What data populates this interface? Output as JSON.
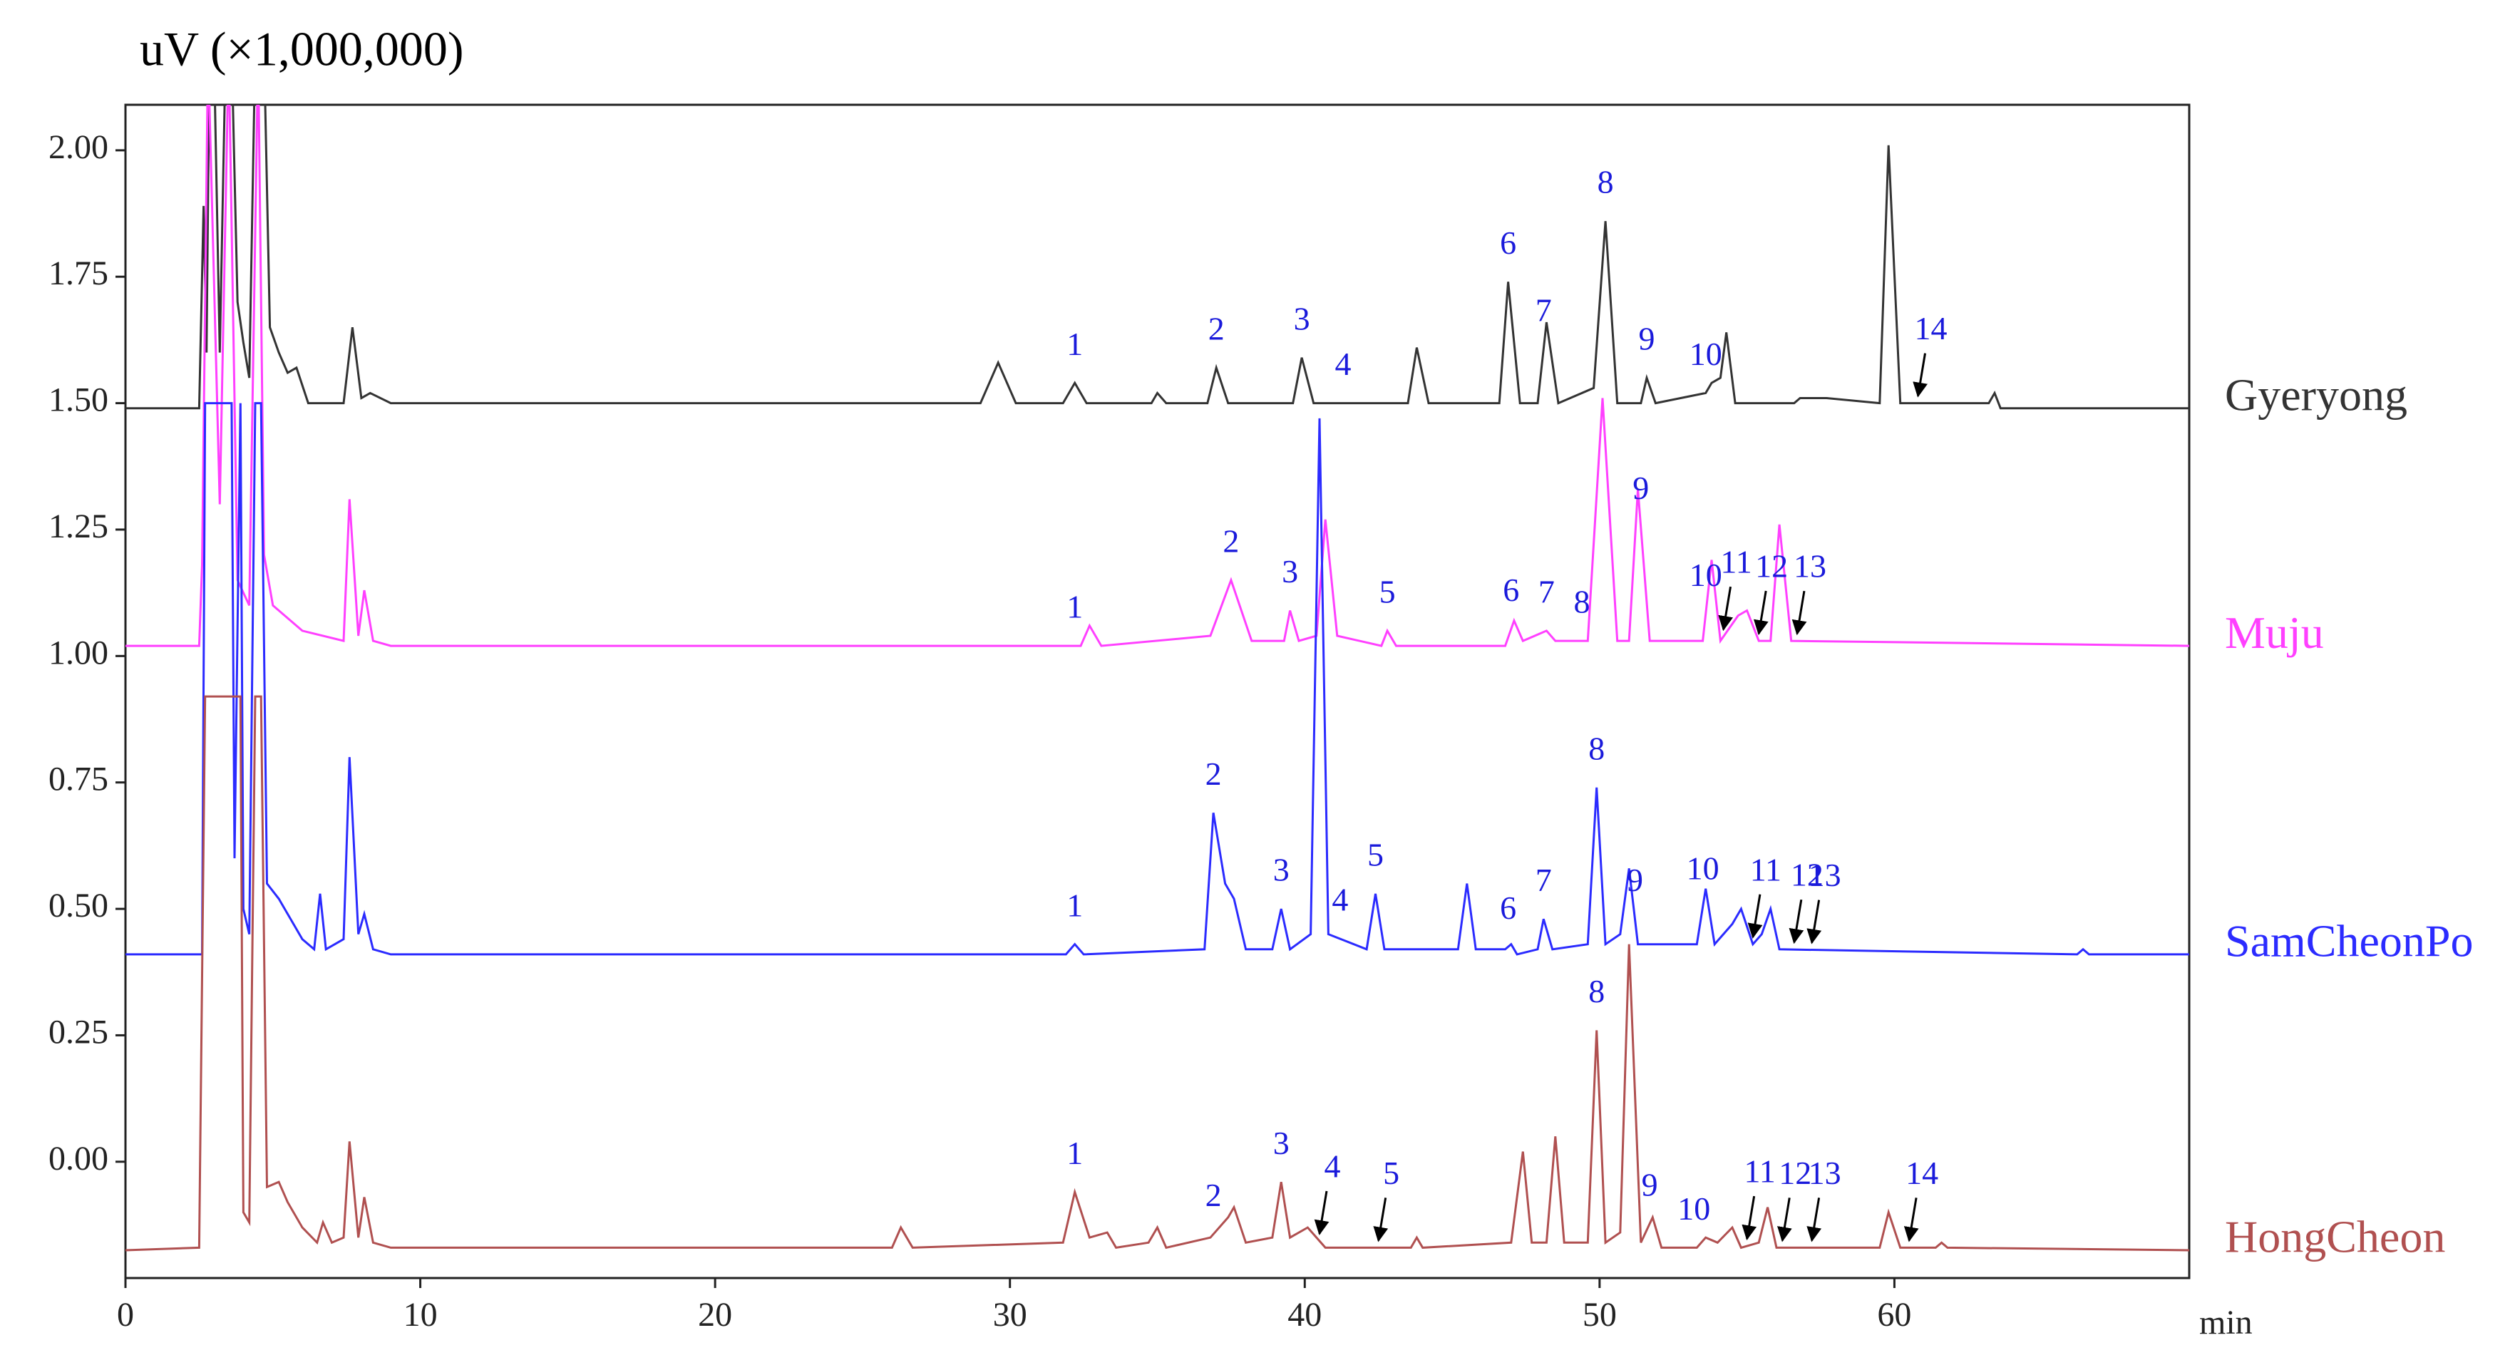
{
  "chart_data": {
    "type": "line",
    "ylabel": "uV (×1,000,000)",
    "xlabel": "min",
    "xlim": [
      0,
      70
    ],
    "xticks": [
      0,
      10,
      20,
      30,
      40,
      50,
      60
    ],
    "ylim": [
      -0.23,
      2.09
    ],
    "yticks": [
      {
        "value": 0,
        "label": "0.00"
      },
      {
        "value": 0.25,
        "label": "0.25"
      },
      {
        "value": 0.5,
        "label": "0.50"
      },
      {
        "value": 0.75,
        "label": "0.75"
      },
      {
        "value": 1,
        "label": "1.00"
      },
      {
        "value": 1.25,
        "label": "1.25"
      },
      {
        "value": 1.5,
        "label": "1.50"
      },
      {
        "value": 1.75,
        "label": "1.75"
      },
      {
        "value": 2,
        "label": "2.00"
      }
    ],
    "peak_label_color": "#1a1adb",
    "series": [
      {
        "name": "Gyeryong",
        "color": "#333333",
        "x": [
          0,
          2.5,
          2.65,
          2.75,
          2.85,
          3.0,
          3.2,
          3.4,
          3.6,
          3.8,
          4.0,
          4.2,
          4.4,
          4.7,
          4.9,
          5.2,
          5.5,
          5.8,
          6.2,
          7.4,
          7.7,
          8.0,
          8.3,
          9,
          29,
          29.6,
          30.2,
          31.8,
          32.2,
          32.6,
          34.8,
          35,
          35.3,
          36.7,
          37.0,
          37.4,
          39.6,
          39.9,
          40.3,
          43.5,
          43.8,
          44.2,
          46.6,
          46.9,
          47.3,
          47.9,
          48.2,
          48.6,
          49.8,
          50.2,
          50.6,
          51.4,
          51.6,
          51.9,
          53.6,
          53.8,
          54.1,
          54.3,
          54.6,
          56.6,
          56.8,
          57.7,
          59.5,
          59.8,
          60.2,
          63.2,
          63.4,
          63.6,
          70
        ],
        "values": [
          1.49,
          1.49,
          1.89,
          1.6,
          2.2,
          2.2,
          1.6,
          2.2,
          2.2,
          1.7,
          1.62,
          1.55,
          2.2,
          2.2,
          1.65,
          1.6,
          1.56,
          1.57,
          1.5,
          1.5,
          1.65,
          1.51,
          1.52,
          1.5,
          1.5,
          1.58,
          1.5,
          1.5,
          1.54,
          1.5,
          1.5,
          1.52,
          1.5,
          1.5,
          1.57,
          1.5,
          1.5,
          1.59,
          1.5,
          1.5,
          1.61,
          1.5,
          1.5,
          1.74,
          1.5,
          1.5,
          1.66,
          1.5,
          1.53,
          1.86,
          1.5,
          1.5,
          1.55,
          1.5,
          1.52,
          1.54,
          1.55,
          1.64,
          1.5,
          1.5,
          1.51,
          1.51,
          1.5,
          2.01,
          1.5,
          1.5,
          1.52,
          1.49,
          1.49
        ],
        "peak_labels": [
          {
            "label": "1",
            "x": 32.2
          },
          {
            "label": "2",
            "x": 37.0
          },
          {
            "label": "3",
            "x": 39.9
          },
          {
            "label": "4",
            "x": 41.3
          },
          {
            "label": "6",
            "x": 46.9
          },
          {
            "label": "7",
            "x": 48.1
          },
          {
            "label": "8",
            "x": 50.2
          },
          {
            "label": "9",
            "x": 51.6
          },
          {
            "label": "10",
            "x": 53.6
          },
          {
            "label": "14",
            "x": 60.8,
            "arrow": true
          }
        ]
      },
      {
        "name": "Muju",
        "color": "#ff40ff",
        "x": [
          0,
          2.5,
          2.6,
          2.8,
          3.2,
          3.5,
          3.8,
          4.2,
          4.5,
          4.7,
          5.0,
          6,
          7.4,
          7.6,
          7.9,
          8.1,
          8.4,
          9,
          32.4,
          32.7,
          33.1,
          36.8,
          37.5,
          38.2,
          39.3,
          39.5,
          39.8,
          40.4,
          40.7,
          41.1,
          42.6,
          42.8,
          43.1,
          46.8,
          47.1,
          47.4,
          48.2,
          48.5,
          49.6,
          50.1,
          50.6,
          51.0,
          51.3,
          51.7,
          53.5,
          53.8,
          54.1,
          54.7,
          55.0,
          55.4,
          55.8,
          56.1,
          56.5,
          70
        ],
        "values": [
          1.02,
          1.02,
          1.18,
          2.2,
          1.3,
          2.2,
          1.15,
          1.1,
          2.2,
          1.2,
          1.1,
          1.05,
          1.03,
          1.31,
          1.04,
          1.13,
          1.03,
          1.02,
          1.02,
          1.06,
          1.02,
          1.04,
          1.15,
          1.03,
          1.03,
          1.09,
          1.03,
          1.04,
          1.27,
          1.04,
          1.02,
          1.05,
          1.02,
          1.02,
          1.07,
          1.03,
          1.05,
          1.03,
          1.03,
          1.51,
          1.03,
          1.03,
          1.33,
          1.03,
          1.03,
          1.19,
          1.03,
          1.08,
          1.09,
          1.03,
          1.03,
          1.26,
          1.03,
          1.02
        ],
        "peak_labels": [
          {
            "label": "1",
            "x": 32.2
          },
          {
            "label": "2",
            "x": 37.5
          },
          {
            "label": "3",
            "x": 39.5
          },
          {
            "label": "5",
            "x": 42.8
          },
          {
            "label": "6",
            "x": 47.0
          },
          {
            "label": "7",
            "x": 48.2
          },
          {
            "label": "8",
            "x": 49.4
          },
          {
            "label": "9",
            "x": 51.4
          },
          {
            "label": "10",
            "x": 53.6
          },
          {
            "label": "11",
            "x": 54.2,
            "arrow": true
          },
          {
            "label": "12",
            "x": 55.4,
            "arrow": true
          },
          {
            "label": "13",
            "x": 56.7,
            "arrow": true
          }
        ]
      },
      {
        "name": "SamCheonPo",
        "color": "#2b2bff",
        "x": [
          0,
          2.6,
          2.7,
          3.6,
          3.7,
          3.9,
          4.0,
          4.2,
          4.4,
          4.6,
          4.8,
          5.2,
          5.6,
          6,
          6.4,
          6.6,
          6.8,
          7.4,
          7.6,
          7.9,
          8.1,
          8.4,
          9,
          31.9,
          32.2,
          32.5,
          36.6,
          36.9,
          37.3,
          37.6,
          38,
          38.9,
          39.2,
          39.5,
          40.2,
          40.5,
          40.8,
          42.1,
          42.4,
          42.7,
          45.2,
          45.5,
          45.8,
          46.8,
          47.0,
          47.2,
          47.9,
          48.1,
          48.4,
          49.6,
          49.9,
          50.2,
          50.7,
          51.0,
          51.3,
          53.3,
          53.6,
          53.9,
          54.5,
          54.8,
          55.2,
          55.5,
          55.8,
          56.1,
          66.2,
          66.4,
          66.6,
          70
        ],
        "values": [
          0.41,
          0.41,
          1.5,
          1.5,
          0.6,
          1.5,
          0.5,
          0.45,
          1.5,
          1.5,
          0.55,
          0.52,
          0.48,
          0.44,
          0.42,
          0.53,
          0.42,
          0.44,
          0.8,
          0.45,
          0.49,
          0.42,
          0.41,
          0.41,
          0.43,
          0.41,
          0.42,
          0.69,
          0.55,
          0.52,
          0.42,
          0.42,
          0.5,
          0.42,
          0.45,
          1.47,
          0.45,
          0.42,
          0.53,
          0.42,
          0.42,
          0.55,
          0.42,
          0.42,
          0.43,
          0.41,
          0.42,
          0.48,
          0.42,
          0.43,
          0.74,
          0.43,
          0.45,
          0.58,
          0.43,
          0.43,
          0.54,
          0.43,
          0.47,
          0.5,
          0.43,
          0.45,
          0.5,
          0.42,
          0.41,
          0.42,
          0.41,
          0.41
        ],
        "peak_labels": [
          {
            "label": "1",
            "x": 32.2
          },
          {
            "label": "2",
            "x": 36.9
          },
          {
            "label": "3",
            "x": 39.2
          },
          {
            "label": "4",
            "x": 41.2
          },
          {
            "label": "5",
            "x": 42.4
          },
          {
            "label": "6",
            "x": 46.9
          },
          {
            "label": "7",
            "x": 48.1
          },
          {
            "label": "8",
            "x": 49.9
          },
          {
            "label": "9",
            "x": 51.2
          },
          {
            "label": "10",
            "x": 53.5
          },
          {
            "label": "11",
            "x": 55.2,
            "arrow": true
          },
          {
            "label": "12",
            "x": 56.6,
            "arrow": true
          },
          {
            "label": "13",
            "x": 57.2,
            "arrow": true
          }
        ]
      },
      {
        "name": "HongCheon",
        "color": "#b05050",
        "x": [
          0,
          2.5,
          2.7,
          3.9,
          4.0,
          4.2,
          4.4,
          4.6,
          4.8,
          5.2,
          5.5,
          6.0,
          6.5,
          6.7,
          7.0,
          7.4,
          7.6,
          7.9,
          8.1,
          8.4,
          9,
          26,
          26.3,
          26.7,
          31.8,
          32.2,
          32.7,
          33.3,
          33.6,
          34.7,
          35,
          35.3,
          36.8,
          37.4,
          37.6,
          38,
          38.9,
          39.2,
          39.5,
          40.1,
          40.4,
          40.7,
          43.6,
          43.8,
          44,
          47.0,
          47.4,
          47.7,
          48.2,
          48.5,
          48.8,
          49.6,
          49.9,
          50.2,
          50.7,
          51.0,
          51.4,
          51.8,
          52.1,
          53.3,
          53.6,
          54,
          54.5,
          54.8,
          55.4,
          55.7,
          56,
          59.5,
          59.8,
          60.2,
          61.4,
          61.6,
          61.8,
          70
        ],
        "values": [
          -0.175,
          -0.17,
          0.92,
          0.92,
          -0.1,
          -0.12,
          0.92,
          0.92,
          -0.05,
          -0.04,
          -0.08,
          -0.13,
          -0.16,
          -0.12,
          -0.16,
          -0.15,
          0.04,
          -0.15,
          -0.07,
          -0.16,
          -0.17,
          -0.17,
          -0.13,
          -0.17,
          -0.16,
          -0.06,
          -0.15,
          -0.14,
          -0.17,
          -0.16,
          -0.13,
          -0.17,
          -0.15,
          -0.11,
          -0.09,
          -0.16,
          -0.15,
          -0.04,
          -0.15,
          -0.13,
          -0.15,
          -0.17,
          -0.17,
          -0.15,
          -0.17,
          -0.16,
          0.02,
          -0.16,
          -0.16,
          0.05,
          -0.16,
          -0.16,
          0.26,
          -0.16,
          -0.14,
          0.43,
          -0.16,
          -0.11,
          -0.17,
          -0.17,
          -0.15,
          -0.16,
          -0.13,
          -0.17,
          -0.16,
          -0.09,
          -0.17,
          -0.17,
          -0.1,
          -0.17,
          -0.17,
          -0.16,
          -0.17,
          -0.175
        ],
        "peak_labels": [
          {
            "label": "1",
            "x": 32.2
          },
          {
            "label": "2",
            "x": 36.9
          },
          {
            "label": "3",
            "x": 39.2
          },
          {
            "label": "4",
            "x": 40.5,
            "arrow": true
          },
          {
            "label": "5",
            "x": 42.5,
            "arrow": true
          },
          {
            "label": "8",
            "x": 49.9
          },
          {
            "label": "9",
            "x": 51.7
          },
          {
            "label": "10",
            "x": 53.2
          },
          {
            "label": "11",
            "x": 55.0,
            "arrow": true
          },
          {
            "label": "12",
            "x": 56.2,
            "arrow": true
          },
          {
            "label": "13",
            "x": 57.2,
            "arrow": true
          },
          {
            "label": "14",
            "x": 60.5,
            "arrow": true
          }
        ]
      }
    ]
  }
}
